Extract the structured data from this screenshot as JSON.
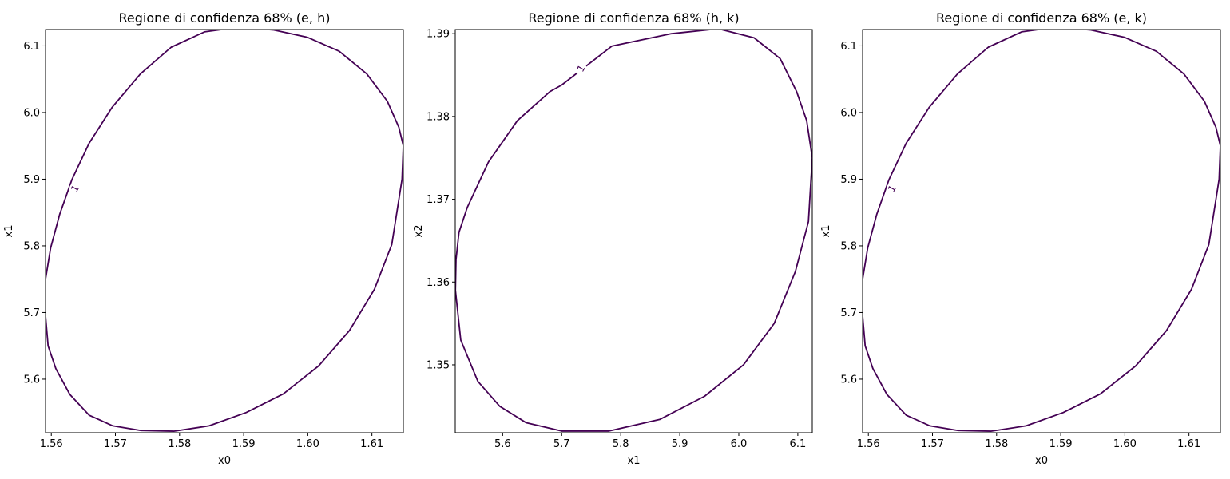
{
  "colors": {
    "contour": "#440154",
    "axes": "#000000",
    "background": "#ffffff"
  },
  "chart_data": [
    {
      "type": "line",
      "title": "Regione di confidenza 68% (e, h)",
      "xlabel": "x0",
      "ylabel": "x1",
      "xlim": [
        1.5591,
        1.6149
      ],
      "ylim": [
        5.5197,
        6.1245
      ],
      "xticks": [
        "1.56",
        "1.57",
        "1.58",
        "1.59",
        "1.60",
        "1.61"
      ],
      "yticks": [
        "5.6",
        "5.7",
        "5.8",
        "5.9",
        "6.0",
        "6.1"
      ],
      "xtick_values": [
        1.56,
        1.57,
        1.58,
        1.59,
        1.6,
        1.61
      ],
      "ytick_values": [
        5.6,
        5.7,
        5.8,
        5.9,
        6.0,
        6.1
      ],
      "contour_level_label": "1",
      "label_position": [
        1.5637,
        5.886
      ],
      "series": [
        {
          "x": [
            1.5591,
            1.5599,
            1.5613,
            1.5632,
            1.5659,
            1.5695,
            1.5739,
            1.5787,
            1.5839,
            1.5892,
            1.5946,
            1.5999,
            1.6049,
            1.6092,
            1.6124,
            1.6142,
            1.6149,
            1.6147,
            1.6131,
            1.6104,
            1.6065,
            1.6017,
            1.5962,
            1.5904,
            1.5846,
            1.5791,
            1.574,
            1.5696,
            1.5659,
            1.5629,
            1.5607,
            1.5595,
            1.5591
          ],
          "y": [
            5.75,
            5.797,
            5.847,
            5.899,
            5.954,
            6.008,
            6.058,
            6.098,
            6.121,
            6.128,
            6.124,
            6.113,
            6.092,
            6.058,
            6.017,
            5.978,
            5.95,
            5.9,
            5.802,
            5.735,
            5.673,
            5.62,
            5.578,
            5.55,
            5.53,
            5.522,
            5.523,
            5.53,
            5.546,
            5.577,
            5.616,
            5.65,
            5.695
          ]
        }
      ]
    },
    {
      "type": "line",
      "title": "Regione di confidenza 68% (h, k)",
      "xlabel": "x1",
      "ylabel": "x2",
      "xlim": [
        5.5197,
        6.1245
      ],
      "ylim": [
        1.3418,
        1.3905
      ],
      "xticks": [
        "5.6",
        "5.7",
        "5.8",
        "5.9",
        "6.0",
        "6.1"
      ],
      "yticks": [
        "1.35",
        "1.36",
        "1.37",
        "1.38",
        "1.39"
      ],
      "xtick_values": [
        5.6,
        5.7,
        5.8,
        5.9,
        6.0,
        6.1
      ],
      "ytick_values": [
        1.35,
        1.36,
        1.37,
        1.38,
        1.39
      ],
      "contour_level_label": "1",
      "label_position": [
        5.733,
        1.3858
      ],
      "series": [
        {
          "x": [
            5.7,
            5.785,
            5.886,
            5.965,
            6.026,
            6.07,
            6.098,
            6.115,
            6.1245,
            6.118,
            6.096,
            6.06,
            6.008,
            5.942,
            5.866,
            5.78,
            5.7,
            5.64,
            5.595,
            5.558,
            5.529,
            5.52,
            5.521,
            5.526,
            5.54,
            5.576,
            5.625,
            5.68,
            5.7
          ],
          "y": [
            1.3838,
            1.3885,
            1.39,
            1.3906,
            1.3895,
            1.387,
            1.383,
            1.3795,
            1.375,
            1.3673,
            1.3613,
            1.355,
            1.35,
            1.3462,
            1.3434,
            1.342,
            1.342,
            1.343,
            1.345,
            1.348,
            1.353,
            1.359,
            1.3627,
            1.366,
            1.369,
            1.3745,
            1.3795,
            1.383,
            1.3838
          ]
        }
      ]
    },
    {
      "type": "line",
      "title": "Regione di confidenza 68% (e, k)",
      "xlabel": "x0",
      "ylabel": "x1",
      "xlim": [
        1.5591,
        1.6149
      ],
      "ylim": [
        5.5197,
        6.1245
      ],
      "xticks": [
        "1.56",
        "1.57",
        "1.58",
        "1.59",
        "1.60",
        "1.61"
      ],
      "yticks": [
        "5.6",
        "5.7",
        "5.8",
        "5.9",
        "6.0",
        "6.1"
      ],
      "xtick_values": [
        1.56,
        1.57,
        1.58,
        1.59,
        1.6,
        1.61
      ],
      "ytick_values": [
        5.6,
        5.7,
        5.8,
        5.9,
        6.0,
        6.1
      ],
      "contour_level_label": "1",
      "label_position": [
        1.5637,
        5.886
      ],
      "series": [
        {
          "x": [
            1.5591,
            1.5599,
            1.5613,
            1.5632,
            1.5659,
            1.5695,
            1.5739,
            1.5787,
            1.5839,
            1.5892,
            1.5946,
            1.5999,
            1.6049,
            1.6092,
            1.6124,
            1.6142,
            1.6149,
            1.6147,
            1.6131,
            1.6104,
            1.6065,
            1.6017,
            1.5962,
            1.5904,
            1.5846,
            1.5791,
            1.574,
            1.5696,
            1.5659,
            1.5629,
            1.5607,
            1.5595,
            1.5591
          ],
          "y": [
            5.75,
            5.797,
            5.847,
            5.899,
            5.954,
            6.008,
            6.058,
            6.098,
            6.121,
            6.128,
            6.124,
            6.113,
            6.092,
            6.058,
            6.017,
            5.978,
            5.95,
            5.9,
            5.802,
            5.735,
            5.673,
            5.62,
            5.578,
            5.55,
            5.53,
            5.522,
            5.523,
            5.53,
            5.546,
            5.577,
            5.616,
            5.65,
            5.695
          ]
        }
      ]
    }
  ]
}
